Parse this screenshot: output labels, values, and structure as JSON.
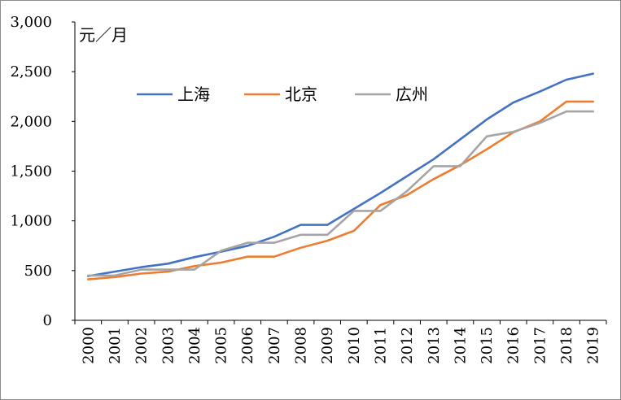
{
  "chart_data": {
    "type": "line",
    "title": "",
    "unit_label": "元／月",
    "xlabel": "",
    "ylabel": "",
    "ylim": [
      0,
      3000
    ],
    "yticks": [
      0,
      500,
      1000,
      1500,
      2000,
      2500,
      3000
    ],
    "ytick_labels": [
      "0",
      "500",
      "1,000",
      "1,500",
      "2,000",
      "2,500",
      "3,000"
    ],
    "categories": [
      "2000",
      "2001",
      "2002",
      "2003",
      "2004",
      "2005",
      "2006",
      "2007",
      "2008",
      "2009",
      "2010",
      "2011",
      "2012",
      "2013",
      "2014",
      "2015",
      "2016",
      "2017",
      "2018",
      "2019"
    ],
    "legend_position": "top-left",
    "grid": false,
    "series": [
      {
        "name": "上海",
        "color": "#4472C4",
        "values": [
          445,
          490,
          535,
          570,
          635,
          690,
          750,
          840,
          960,
          960,
          1120,
          1280,
          1450,
          1620,
          1820,
          2020,
          2190,
          2300,
          2420,
          2480
        ]
      },
      {
        "name": "北京",
        "color": "#ED7D31",
        "values": [
          412,
          435,
          470,
          490,
          545,
          580,
          640,
          640,
          730,
          800,
          900,
          1160,
          1260,
          1420,
          1560,
          1720,
          1890,
          2000,
          2200,
          2200
        ]
      },
      {
        "name": "広州",
        "color": "#A5A5A5",
        "values": [
          450,
          450,
          510,
          510,
          510,
          700,
          780,
          780,
          860,
          860,
          1100,
          1100,
          1300,
          1550,
          1550,
          1850,
          1895,
          1985,
          2100,
          2100
        ]
      }
    ]
  }
}
